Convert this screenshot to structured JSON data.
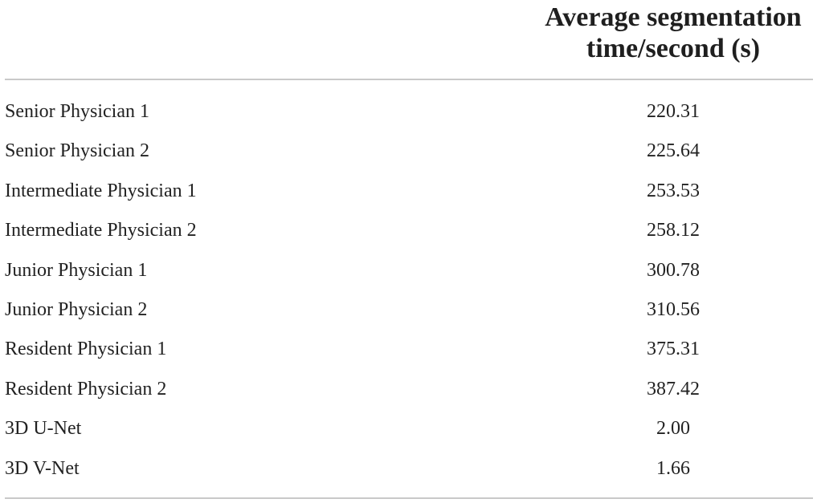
{
  "table": {
    "header": {
      "line1": "Average segmentation",
      "line2": "time/second (s)"
    },
    "rows": [
      {
        "label": "Senior Physician 1",
        "value": "220.31"
      },
      {
        "label": "Senior Physician 2",
        "value": "225.64"
      },
      {
        "label": "Intermediate Physician 1",
        "value": "253.53"
      },
      {
        "label": "Intermediate Physician 2",
        "value": "258.12"
      },
      {
        "label": "Junior Physician 1",
        "value": "300.78"
      },
      {
        "label": "Junior Physician 2",
        "value": "310.56"
      },
      {
        "label": "Resident Physician 1",
        "value": "375.31"
      },
      {
        "label": "Resident Physician 2",
        "value": "387.42"
      },
      {
        "label": "3D U-Net",
        "value": "2.00"
      },
      {
        "label": "3D V-Net",
        "value": "1.66"
      }
    ]
  }
}
